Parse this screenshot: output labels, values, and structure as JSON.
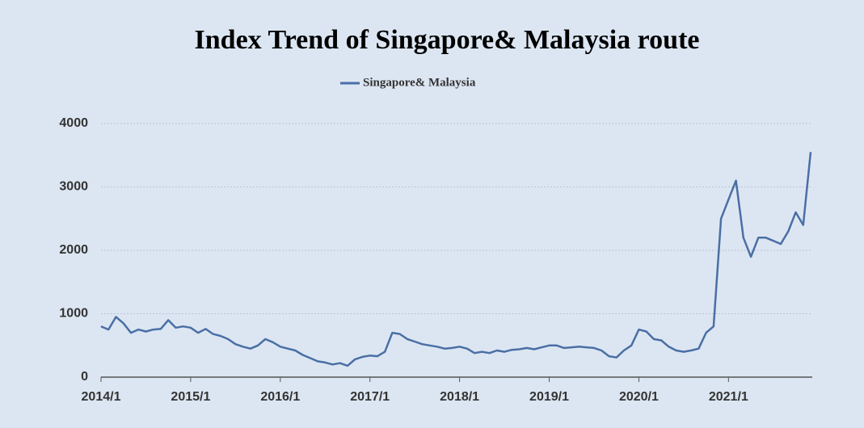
{
  "chart_data": {
    "type": "line",
    "title": "Index Trend of Singapore& Malaysia route",
    "categories": [
      "2014/1",
      null,
      null,
      null,
      null,
      null,
      null,
      null,
      null,
      null,
      null,
      null,
      "2015/1",
      null,
      null,
      null,
      null,
      null,
      null,
      null,
      null,
      null,
      null,
      null,
      "2016/1",
      null,
      null,
      null,
      null,
      null,
      null,
      null,
      null,
      null,
      null,
      null,
      "2017/1",
      null,
      null,
      null,
      null,
      null,
      null,
      null,
      null,
      null,
      null,
      null,
      "2018/1",
      null,
      null,
      null,
      null,
      null,
      null,
      null,
      null,
      null,
      null,
      null,
      "2019/1",
      null,
      null,
      null,
      null,
      null,
      null,
      null,
      null,
      null,
      null,
      null,
      "2020/1",
      null,
      null,
      null,
      null,
      null,
      null,
      null,
      null,
      null,
      null,
      null,
      "2021/1",
      null,
      null,
      null,
      null,
      null,
      null,
      null,
      null,
      null,
      null,
      null
    ],
    "series": [
      {
        "name": "Singapore& Malaysia",
        "color": "#4a6fa5",
        "values": [
          800,
          750,
          950,
          850,
          700,
          750,
          720,
          750,
          760,
          900,
          780,
          800,
          780,
          700,
          760,
          680,
          650,
          600,
          520,
          480,
          450,
          500,
          600,
          550,
          480,
          450,
          420,
          350,
          300,
          250,
          230,
          200,
          220,
          180,
          280,
          320,
          340,
          330,
          400,
          700,
          680,
          600,
          560,
          520,
          500,
          480,
          450,
          460,
          480,
          450,
          380,
          400,
          380,
          420,
          400,
          430,
          440,
          460,
          440,
          470,
          500,
          500,
          460,
          470,
          480,
          470,
          460,
          420,
          330,
          310,
          420,
          500,
          750,
          720,
          600,
          580,
          480,
          420,
          400,
          420,
          450,
          700,
          800,
          2500,
          2800,
          3100,
          2200,
          1900,
          2200,
          2200,
          2150,
          2100,
          2300,
          2600,
          2400,
          3550
        ]
      }
    ],
    "ylim": [
      0,
      4000
    ],
    "yticks": [
      0,
      1000,
      2000,
      3000,
      4000
    ],
    "grid": true
  }
}
